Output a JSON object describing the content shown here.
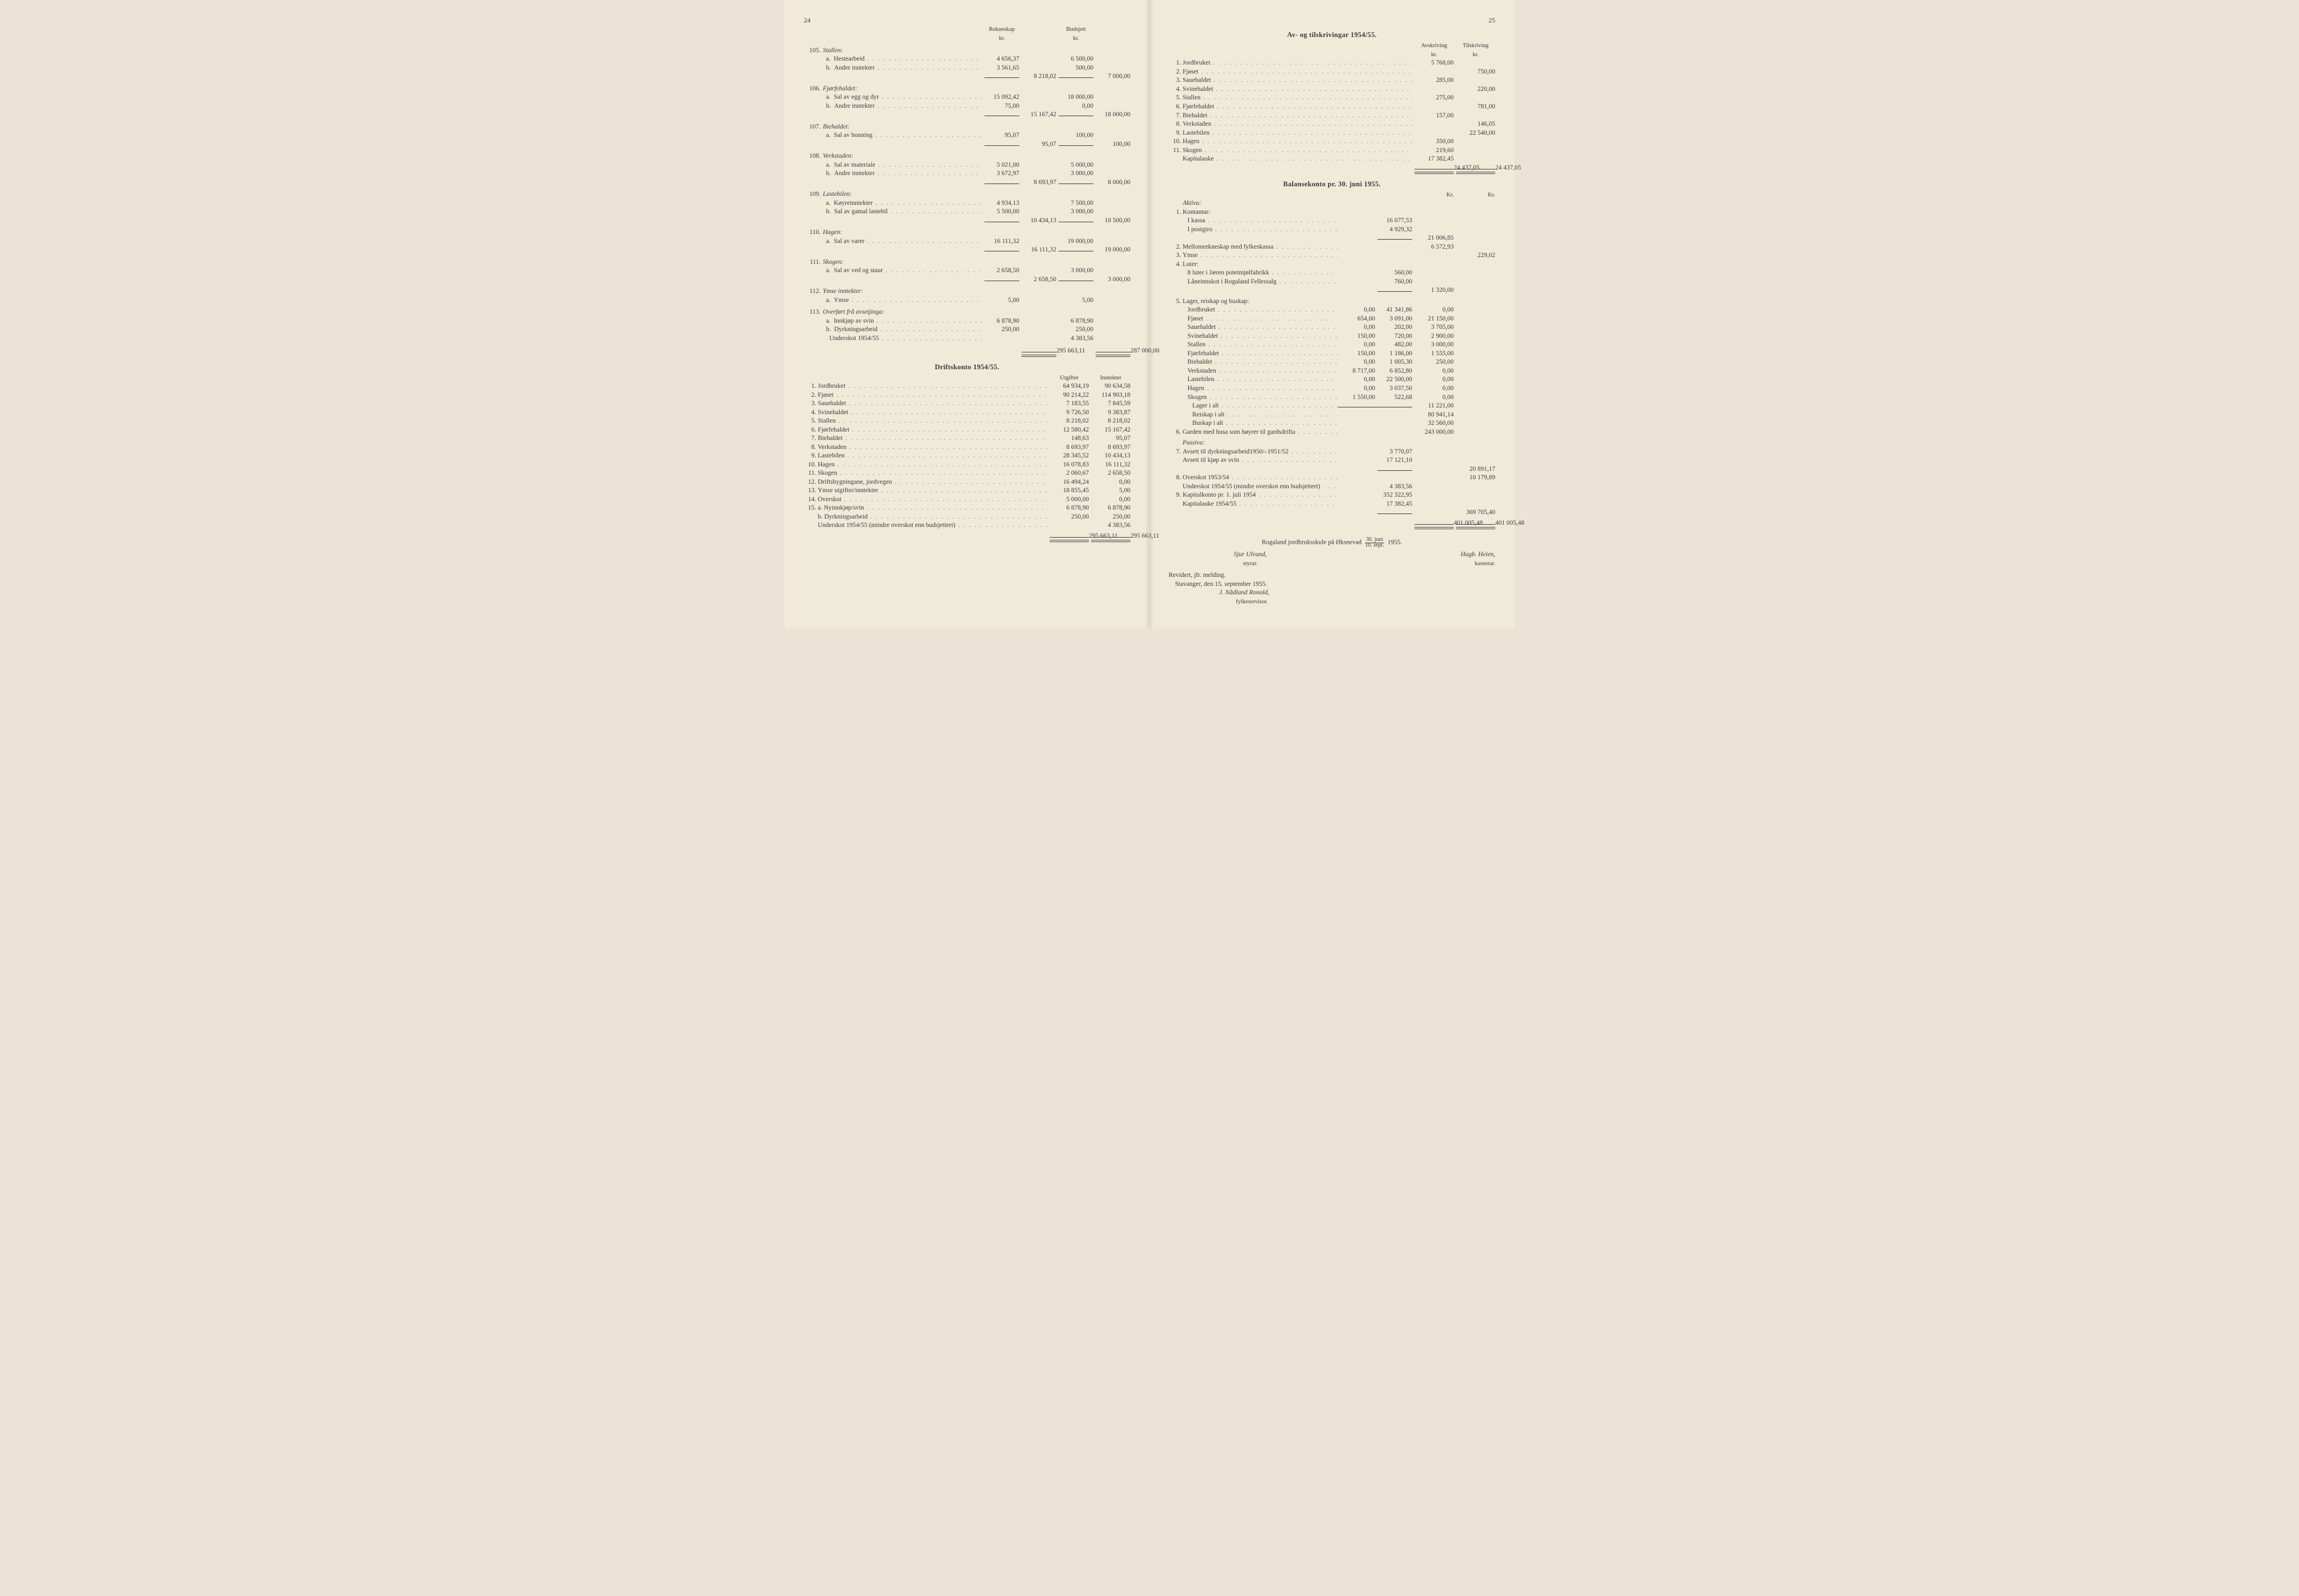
{
  "left": {
    "page_number": "24",
    "headers": {
      "rekneskap": "Rekneskap",
      "budsjett": "Budsjett",
      "kr": "kr."
    },
    "entries": [
      {
        "no": "105.",
        "title": "Stallen:",
        "sub": [
          {
            "lt": "a.",
            "label": "Hestearbeid",
            "r": "4 656,37",
            "b": "6 500,00"
          },
          {
            "lt": "b.",
            "label": "Andre inntekter",
            "r": "3 561,65",
            "b": "500,00"
          }
        ],
        "r_total": "8 218,02",
        "b_total": "7 000,00"
      },
      {
        "no": "106.",
        "title": "Fjørfehaldet:",
        "sub": [
          {
            "lt": "a.",
            "label": "Sal av egg og dyr",
            "r": "15 092,42",
            "b": "18 000,00"
          },
          {
            "lt": "b.",
            "label": "Andre inntekter",
            "r": "75,00",
            "b": "0,00"
          }
        ],
        "r_total": "15 167,42",
        "b_total": "18 000,00"
      },
      {
        "no": "107.",
        "title": "Biehaldet:",
        "sub": [
          {
            "lt": "a.",
            "label": "Sal av honning",
            "r": "95,07",
            "b": "100,00"
          }
        ],
        "r_total": "95,07",
        "b_total": "100,00"
      },
      {
        "no": "108.",
        "title": "Verkstaden:",
        "sub": [
          {
            "lt": "a.",
            "label": "Sal av materiale",
            "r": "5 021,00",
            "b": "5 000,00"
          },
          {
            "lt": "b.",
            "label": "Andre inntekter",
            "r": "3 672,97",
            "b": "3 000,00"
          }
        ],
        "r_total": "8 693,97",
        "b_total": "8 000,00"
      },
      {
        "no": "109.",
        "title": "Lastebilen:",
        "sub": [
          {
            "lt": "a.",
            "label": "Køyreinntekter",
            "r": "4 934,13",
            "b": "7 500,00"
          },
          {
            "lt": "b.",
            "label": "Sal av gamal lastebil",
            "r": "5 500,00",
            "b": "3 000,00"
          }
        ],
        "r_total": "10 434,13",
        "b_total": "10 500,00"
      },
      {
        "no": "110.",
        "title": "Hagen:",
        "sub": [
          {
            "lt": "a.",
            "label": "Sal av varer",
            "r": "16 111,32",
            "b": "19 000,00"
          }
        ],
        "r_total": "16 111,32",
        "b_total": "19 000,00"
      },
      {
        "no": "111.",
        "title": "Skogen:",
        "sub": [
          {
            "lt": "a.",
            "label": "Sal av ved og staur",
            "r": "2 658,50",
            "b": "3 000,00"
          }
        ],
        "r_total": "2 658,50",
        "b_total": "3 000,00"
      },
      {
        "no": "112.",
        "title": "Ymse inntekter:",
        "sub": [
          {
            "lt": "a.",
            "label": "Ymse",
            "r": "5,00",
            "b": "5,00"
          }
        ]
      },
      {
        "no": "113.",
        "title": "Overført frå avsetjinga:",
        "sub": [
          {
            "lt": "a.",
            "label": "Innkjøp av svin",
            "r": "6 878,90",
            "b": "6 878,90"
          },
          {
            "lt": "b.",
            "label": "Dyrkningsarbeid",
            "r": "250,00",
            "b": "250,00"
          },
          {
            "lt": "",
            "label": "Underskot 1954/55",
            "r": "",
            "b": "4 383,56"
          }
        ]
      }
    ],
    "grand_totals": {
      "r": "295 663,11",
      "b": "287 000,00"
    },
    "drift": {
      "title": "Driftskonto 1954/55.",
      "col_a": "Utgifter",
      "col_b": "Inntekter",
      "rows": [
        {
          "no": "1.",
          "label": "Jordbruket",
          "a": "64 934,19",
          "b": "90 634,58"
        },
        {
          "no": "2.",
          "label": "Fjøset",
          "a": "90 214,22",
          "b": "114 903,18"
        },
        {
          "no": "3.",
          "label": "Sauehaldet",
          "a": "7 183,55",
          "b": "7 845,59"
        },
        {
          "no": "4.",
          "label": "Svinehaldet",
          "a": "9 726,50",
          "b": "9 383,87"
        },
        {
          "no": "5.",
          "label": "Stallen",
          "a": "8 218,02",
          "b": "8 218,02"
        },
        {
          "no": "6.",
          "label": "Fjørfehaldet",
          "a": "12 580,42",
          "b": "15 167,42"
        },
        {
          "no": "7.",
          "label": "Biehaldet",
          "a": "148,63",
          "b": "95,07"
        },
        {
          "no": "8.",
          "label": "Verkstaden",
          "a": "8 693,97",
          "b": "8 693,97"
        },
        {
          "no": "9.",
          "label": "Lastebilen",
          "a": "28 345,52",
          "b": "10 434,13"
        },
        {
          "no": "10.",
          "label": "Hagen",
          "a": "16 078,83",
          "b": "16 111,32"
        },
        {
          "no": "11.",
          "label": "Skogen",
          "a": "2 060,67",
          "b": "2 658,50"
        },
        {
          "no": "12.",
          "label": "Driftsbygningane, jordvegen",
          "a": "16 494,24",
          "b": "0,00"
        },
        {
          "no": "13.",
          "label": "Ymse utgifter/inntekter",
          "a": "18 855,45",
          "b": "5,00"
        },
        {
          "no": "14.",
          "label": "Overskot",
          "a": "5 000,00",
          "b": "0,00"
        },
        {
          "no": "15.",
          "label": "a. Nyinnkjøp/svin",
          "a": "6 878,90",
          "b": "6 878,90"
        },
        {
          "no": "",
          "label": "b. Dyrkningsarbeid",
          "a": "250,00",
          "b": "250,00"
        },
        {
          "no": "",
          "label": "Underskot 1954/55 (mindre overskot enn budsjettert)",
          "a": "",
          "b": "4 383,56"
        }
      ],
      "total_a": "295 663,11",
      "total_b": "295 663,11"
    }
  },
  "right": {
    "page_number": "25",
    "avtil": {
      "title": "Av- og tilskrivingar 1954/55.",
      "col_a": "Avskriving",
      "col_b": "Tilskriving",
      "kr": "kr.",
      "rows": [
        {
          "no": "1.",
          "label": "Jordbruket",
          "a": "5 768,00",
          "b": ""
        },
        {
          "no": "2.",
          "label": "Fjøset",
          "a": "",
          "b": "750,00"
        },
        {
          "no": "3.",
          "label": "Sauehaldet",
          "a": "285,00",
          "b": ""
        },
        {
          "no": "4.",
          "label": "Svinehaldet",
          "a": "",
          "b": "220,00"
        },
        {
          "no": "5.",
          "label": "Stallen",
          "a": "275,00",
          "b": ""
        },
        {
          "no": "6.",
          "label": "Fjørfehaldet",
          "a": "",
          "b": "781,00"
        },
        {
          "no": "7.",
          "label": "Biehaldet",
          "a": "157,00",
          "b": ""
        },
        {
          "no": "8.",
          "label": "Verkstaden",
          "a": "",
          "b": "146,05"
        },
        {
          "no": "9.",
          "label": "Lastebilen",
          "a": "",
          "b": "22 540,00"
        },
        {
          "no": "10.",
          "label": "Hagen",
          "a": "350,00",
          "b": ""
        },
        {
          "no": "11.",
          "label": "Skogen",
          "a": "219,60",
          "b": ""
        },
        {
          "no": "",
          "label": "Kapitalauke",
          "a": "17 382,45",
          "b": ""
        }
      ],
      "total_a": "24 437,05",
      "total_b": "24 437,05"
    },
    "balanse": {
      "title": "Balansekonto pr. 30. juni 1955.",
      "aktiva_label": "Aktiva:",
      "kr": "Kr.",
      "items": {
        "kontantar_title": "Kontantar:",
        "ikassa_label": "I kassa",
        "ikassa": "16 077,53",
        "ipostgiro_label": "I postgiro",
        "ipostgiro": "4 929,32",
        "kontantar_sum": "21 006,85",
        "mellom_label": "Mellomrekneskap med fylkeskassa",
        "mellom": "6 572,93",
        "ymse_label": "Ymse",
        "ymse": "229,02",
        "luter_title": "Luter:",
        "luter_a_label": "8 luter i Jæren potetmjølfabrikk",
        "luter_a": "560,00",
        "luter_b_label": "Låneinnskot i Rogaland Fellessalg",
        "luter_b": "760,00",
        "luter_sum": "1 320,00",
        "lager_title": "Lager, reiskap og buskap:",
        "lager_rows": [
          {
            "label": "Jordbruket",
            "c1": "0,00",
            "c2": "41 341,86",
            "c3": "0,00"
          },
          {
            "label": "Fjøset",
            "c1": "654,00",
            "c2": "3 091,00",
            "c3": "21 150,00"
          },
          {
            "label": "Sauehaldet",
            "c1": "0,00",
            "c2": "202,00",
            "c3": "3 705,00"
          },
          {
            "label": "Svinehaldet",
            "c1": "150,00",
            "c2": "720,00",
            "c3": "2 900,00"
          },
          {
            "label": "Stallen",
            "c1": "0,00",
            "c2": "482,00",
            "c3": "3 000,00"
          },
          {
            "label": "Fjørfehaldet",
            "c1": "150,00",
            "c2": "1 186,00",
            "c3": "1 555,00"
          },
          {
            "label": "Biehaldet",
            "c1": "0,00",
            "c2": "1 005,30",
            "c3": "250,00"
          },
          {
            "label": "Verkstaden",
            "c1": "8 717,00",
            "c2": "6 852,80",
            "c3": "0,00"
          },
          {
            "label": "Lastebilen",
            "c1": "0,00",
            "c2": "22 500,00",
            "c3": "0,00"
          },
          {
            "label": "Hagen",
            "c1": "0,00",
            "c2": "3 037,50",
            "c3": "0,00"
          },
          {
            "label": "Skogen",
            "c1": "1 550,00",
            "c2": "522,68",
            "c3": "0,00"
          }
        ],
        "lager_ialt_label": "Lager i alt",
        "lager_ialt": "11 221,00",
        "reiskap_ialt_label": "Reiskap i alt",
        "reiskap_ialt": "80 941,14",
        "buskap_ialt_label": "Buskap i alt",
        "buskap_ialt": "32 560,00",
        "garden_label": "Garden med husa som høyrer til gardsdrifta",
        "garden": "243 000,00"
      },
      "passiva_label": "Passiva:",
      "passiva": {
        "avsett_dyrk_label": "Avsett til dyrkningsarbeid1950/–1951/52",
        "avsett_dyrk": "3 770,07",
        "avsett_svin_label": "Avsett til kjøp av svin",
        "avsett_svin": "17 121,10",
        "passiva7_sum": "20 891,17",
        "overskot_label": "Overskot 1953/54",
        "overskot_sum": "10 179,89",
        "underskot_label": "Underskot 1954/55 (mindre overskot enn budsjettert)",
        "underskot": "4 383,56",
        "kapitalkonto_label": "Kapitalkonto pr. 1. juli 1954",
        "kapitalkonto": "352 322,95",
        "kapitalauke_label": "Kapitalauke 1954/55",
        "kapitalauke": "17 382,45",
        "kapital_sum": "369 705,40",
        "grand_a": "401 005,48",
        "grand_b": "401 005,48"
      }
    },
    "footer": {
      "line1_a": "Rogaland jordbruksskule på Øksnevad",
      "frac_top": "30. juni",
      "frac_bot": "10. sept.",
      "year": "1955.",
      "sjur": "Sjur Ulvund,",
      "styrar": "styrar.",
      "hagb": "Hagb. Heien,",
      "kasserar": "kasserar.",
      "rev": "Revidert, jfr. melding.",
      "stav": "Stavanger, den 15. september 1955.",
      "jn": "J. Nådland Ronold,",
      "fylkes": "fylkesrevisor."
    }
  }
}
